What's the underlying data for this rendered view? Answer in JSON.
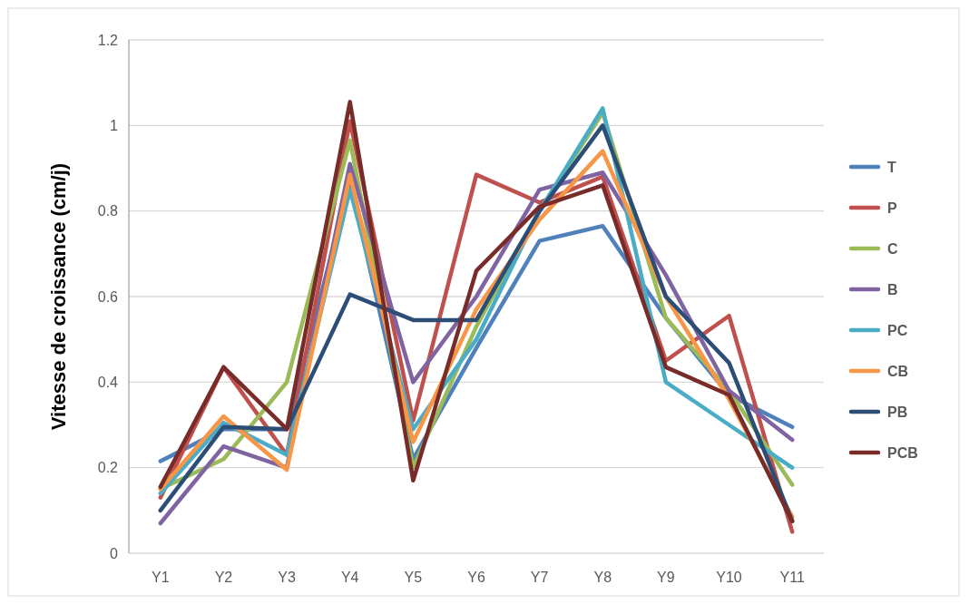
{
  "chart_data": {
    "type": "line",
    "ylabel": "Vitesse de croissance (cm/j)",
    "categories": [
      "Y1",
      "Y2",
      "Y3",
      "Y4",
      "Y5",
      "Y6",
      "Y7",
      "Y8",
      "Y9",
      "Y10",
      "Y11"
    ],
    "ylim": [
      0,
      1.2
    ],
    "yticks": [
      0,
      0.2,
      0.4,
      0.6,
      0.8,
      1,
      1.2
    ],
    "grid": "y",
    "legend": "right",
    "marker": "none",
    "line_style": "solid",
    "series": [
      {
        "name": "T",
        "color": "#4f81bd",
        "values": [
          0.215,
          0.29,
          0.29,
          0.87,
          0.22,
          0.48,
          0.73,
          0.765,
          0.55,
          0.37,
          0.295
        ]
      },
      {
        "name": "P",
        "color": "#c0504d",
        "values": [
          0.13,
          0.435,
          0.23,
          1.01,
          0.31,
          0.885,
          0.82,
          0.88,
          0.45,
          0.555,
          0.05
        ]
      },
      {
        "name": "C",
        "color": "#9bbb59",
        "values": [
          0.15,
          0.22,
          0.4,
          0.965,
          0.2,
          0.53,
          0.8,
          1.03,
          0.55,
          0.38,
          0.16
        ]
      },
      {
        "name": "B",
        "color": "#8064a2",
        "values": [
          0.07,
          0.25,
          0.2,
          0.91,
          0.4,
          0.6,
          0.85,
          0.89,
          0.65,
          0.38,
          0.265
        ]
      },
      {
        "name": "PC",
        "color": "#4bacc6",
        "values": [
          0.14,
          0.305,
          0.23,
          0.85,
          0.29,
          0.5,
          0.8,
          1.04,
          0.4,
          0.3,
          0.2
        ]
      },
      {
        "name": "CB",
        "color": "#f79646",
        "values": [
          0.15,
          0.32,
          0.195,
          0.885,
          0.26,
          0.57,
          0.78,
          0.94,
          0.6,
          0.36,
          0.085
        ]
      },
      {
        "name": "PB",
        "color": "#2c4d75",
        "values": [
          0.1,
          0.295,
          0.29,
          0.605,
          0.545,
          0.545,
          0.8,
          1.0,
          0.6,
          0.445,
          0.075
        ]
      },
      {
        "name": "PCB",
        "color": "#772c2a",
        "values": [
          0.155,
          0.435,
          0.29,
          1.055,
          0.17,
          0.66,
          0.81,
          0.86,
          0.435,
          0.37,
          0.075
        ]
      }
    ]
  }
}
